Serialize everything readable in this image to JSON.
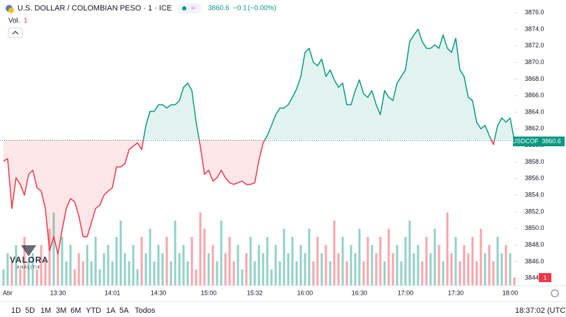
{
  "header": {
    "title": "U.S. DOLLAR / COLOMBIAN PESO · 1 · ICE",
    "change": "−0.1",
    "change_pct": "(−0.00%)",
    "volume_label": "Vol.",
    "symbol": "USDCOP",
    "time": "18:37:02 (UTC)",
    "watermark": "VALORA",
    "watermark_sub": "ANALITIK"
  },
  "toolbar": [
    "1D",
    "5D",
    "1M",
    "3M",
    "6M",
    "YTD",
    "1A",
    "5A",
    "Todos"
  ],
  "chart_data": {
    "type": "line",
    "categories": [
      null,
      "Abr",
      null,
      null,
      null,
      null,
      null,
      null,
      null,
      null,
      null,
      null,
      null,
      "13:30",
      null,
      null,
      null,
      null,
      null,
      null,
      null,
      null,
      null,
      null,
      null,
      null,
      "14:01",
      null,
      null,
      null,
      null,
      null,
      null,
      null,
      null,
      null,
      null,
      "14:30",
      null,
      null,
      null,
      null,
      null,
      null,
      null,
      null,
      null,
      null,
      null,
      "15:00",
      null,
      null,
      null,
      null,
      null,
      null,
      null,
      null,
      null,
      null,
      "15:32",
      null,
      null,
      null,
      null,
      null,
      null,
      null,
      null,
      null,
      null,
      null,
      "16:00",
      null,
      null,
      null,
      null,
      null,
      null,
      null,
      null,
      null,
      null,
      null,
      null,
      "16:30",
      null,
      null,
      null,
      null,
      null,
      null,
      null,
      null,
      null,
      null,
      "17:00",
      null,
      null,
      null,
      null,
      null,
      null,
      null,
      null,
      null,
      null,
      null,
      "17:30",
      null,
      null,
      null,
      null,
      null,
      null,
      null,
      null,
      null,
      null,
      null,
      null,
      "18:00",
      null
    ],
    "series": [
      {
        "name": "USDCOP",
        "values": [
          3858.1,
          3858.4,
          3852.4,
          3856.1,
          3855.3,
          3854.0,
          3856.5,
          3857.0,
          3854.9,
          3854.5,
          3852.4,
          3847.3,
          3849.0,
          3846.9,
          3849.8,
          3852.4,
          3853.6,
          3853.2,
          3851.5,
          3849.0,
          3849.0,
          3850.7,
          3852.4,
          3852.8,
          3854.0,
          3854.5,
          3854.9,
          3857.4,
          3857.4,
          3857.8,
          3859.5,
          3859.9,
          3860.3,
          3859.5,
          3862.4,
          3864.1,
          3864.1,
          3864.9,
          3864.9,
          3864.5,
          3864.9,
          3864.9,
          3865.4,
          3867.0,
          3867.5,
          3866.6,
          3862.8,
          3859.9,
          3856.5,
          3857.0,
          3855.7,
          3856.1,
          3857.0,
          3856.1,
          3855.5,
          3855.3,
          3855.5,
          3855.7,
          3855.3,
          3855.3,
          3855.5,
          3858.2,
          3860.3,
          3861.2,
          3862.4,
          3863.7,
          3864.5,
          3864.5,
          3864.9,
          3865.8,
          3866.8,
          3868.3,
          3871.2,
          3871.7,
          3870.0,
          3869.6,
          3870.4,
          3868.3,
          3869.1,
          3867.9,
          3867.0,
          3867.5,
          3864.9,
          3864.9,
          3866.6,
          3867.9,
          3866.2,
          3865.8,
          3866.6,
          3864.9,
          3863.7,
          3866.6,
          3865.8,
          3865.4,
          3867.5,
          3868.3,
          3869.1,
          3872.5,
          3873.3,
          3874.0,
          3872.5,
          3871.7,
          3871.7,
          3872.1,
          3871.7,
          3873.3,
          3871.7,
          3871.2,
          3872.9,
          3869.1,
          3868.3,
          3865.8,
          3865.4,
          3862.8,
          3862.0,
          3862.4,
          3861.2,
          3860.1,
          3862.4,
          3863.3,
          3862.8,
          3863.3,
          3860.6
        ]
      },
      {
        "name": "Vol.",
        "values": [
          2,
          4,
          3,
          5,
          2,
          6,
          3,
          4,
          2,
          5,
          3,
          7,
          9,
          4,
          6,
          3,
          5,
          2,
          4,
          3,
          5,
          3,
          6,
          2,
          4,
          5,
          3,
          6,
          8,
          4,
          3,
          5,
          2,
          6,
          4,
          7,
          3,
          5,
          4,
          6,
          3,
          8,
          4,
          5,
          3,
          6,
          2,
          9,
          7,
          4,
          5,
          3,
          8,
          4,
          6,
          3,
          5,
          2,
          4,
          6,
          3,
          5,
          4,
          6,
          2,
          5,
          3,
          7,
          4,
          6,
          3,
          5,
          4,
          7,
          3,
          6,
          4,
          5,
          3,
          8,
          4,
          6,
          3,
          5,
          4,
          7,
          3,
          6,
          5,
          4,
          6,
          3,
          7,
          4,
          5,
          3,
          6,
          8,
          4,
          5,
          3,
          6,
          4,
          7,
          5,
          3,
          9,
          4,
          6,
          3,
          5,
          4,
          6,
          3,
          7,
          4,
          5,
          3,
          6,
          4,
          5,
          4,
          1
        ]
      }
    ],
    "baseline": 3860.7,
    "up_color": "#089981",
    "down_color": "#f23645",
    "ylim": [
      3843.1,
      3877.1
    ],
    "yticks": [
      {
        "value": 3876,
        "label": "3876.0"
      },
      {
        "value": 3874,
        "label": "3874.0"
      },
      {
        "value": 3872,
        "label": "3872.0"
      },
      {
        "value": 3870,
        "label": "3870.0"
      },
      {
        "value": 3868,
        "label": "3868.0"
      },
      {
        "value": 3866,
        "label": "3866.0"
      },
      {
        "value": 3864,
        "label": "3864.0"
      },
      {
        "value": 3862,
        "label": "3862.0"
      },
      {
        "value": 3860,
        "label": "3860.0"
      },
      {
        "value": 3858,
        "label": "3858.0"
      },
      {
        "value": 3856,
        "label": "3856.0"
      },
      {
        "value": 3854,
        "label": "3854.0"
      },
      {
        "value": 3852,
        "label": "3852.0"
      },
      {
        "value": 3850,
        "label": "3850.0"
      },
      {
        "value": 3848,
        "label": "3848.0"
      },
      {
        "value": 3846,
        "label": "3846.0"
      },
      {
        "value": 3844,
        "label": "3844.0"
      }
    ],
    "volume_ylim": [
      0,
      12
    ],
    "grid": false
  }
}
